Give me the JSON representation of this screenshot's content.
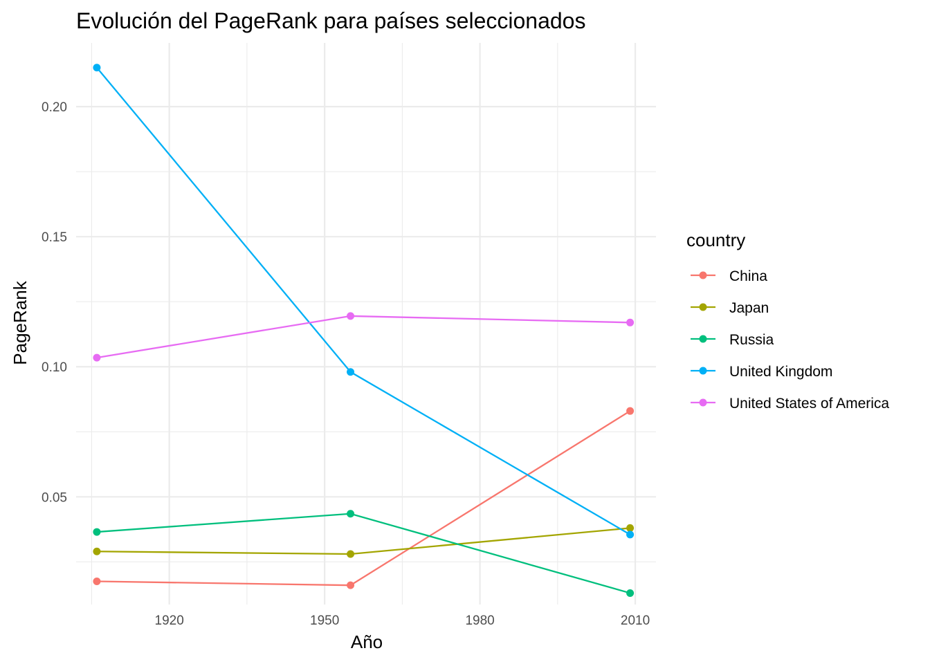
{
  "chart_data": {
    "type": "line",
    "title": "Evolución del PageRank para países seleccionados",
    "xlabel": "Año",
    "ylabel": "PageRank",
    "x": [
      1906,
      1955,
      2009
    ],
    "xlim": [
      1902,
      2014
    ],
    "ylim": [
      0.0086,
      0.2245
    ],
    "x_ticks": [
      1920,
      1950,
      1980,
      2010
    ],
    "x_tick_labels": [
      "1920",
      "1950",
      "1980",
      "2010"
    ],
    "x_minor_ticks": [
      1905,
      1935,
      1965,
      1995
    ],
    "y_ticks": [
      0.05,
      0.1,
      0.15,
      0.2
    ],
    "y_tick_labels": [
      "0.05",
      "0.10",
      "0.15",
      "0.20"
    ],
    "y_minor_ticks": [
      0.025,
      0.075,
      0.125,
      0.175
    ],
    "grid": true,
    "legend": {
      "title": "country",
      "position": "right"
    },
    "series": [
      {
        "name": "China",
        "color": "#F8766D",
        "values": [
          0.0175,
          0.016,
          0.083
        ]
      },
      {
        "name": "Japan",
        "color": "#A3A500",
        "values": [
          0.029,
          0.028,
          0.038
        ]
      },
      {
        "name": "Russia",
        "color": "#00BF7D",
        "values": [
          0.0365,
          0.0435,
          0.013
        ]
      },
      {
        "name": "United Kingdom",
        "color": "#00B0F6",
        "values": [
          0.215,
          0.098,
          0.0355
        ]
      },
      {
        "name": "United States of America",
        "color": "#E76BF3",
        "values": [
          0.1035,
          0.1195,
          0.117
        ]
      }
    ]
  }
}
